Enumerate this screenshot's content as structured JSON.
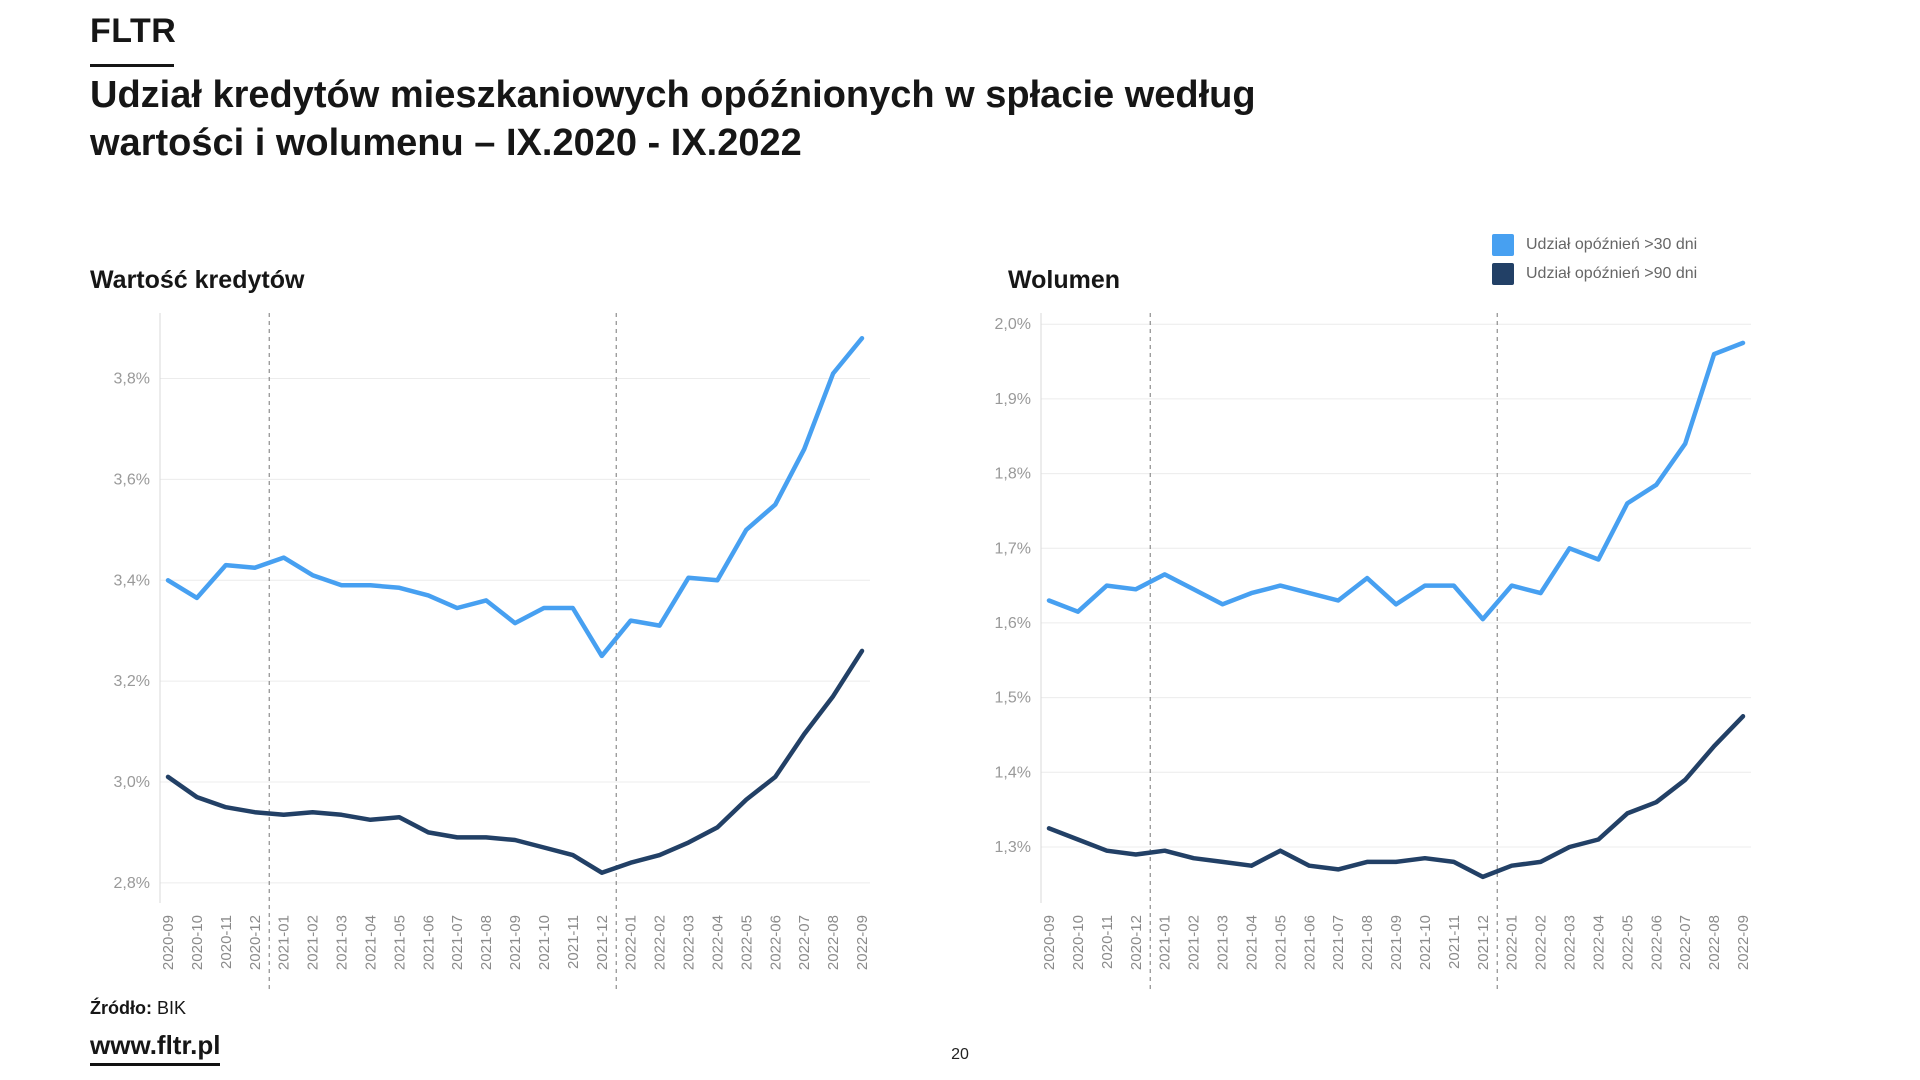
{
  "header": {
    "logo": "FLTR",
    "title_line1": "Udział kredytów mieszkaniowych opóźnionych w spłacie według",
    "title_line2": "wartości i wolumenu – IX.2020 - IX.2022"
  },
  "legend": {
    "items": [
      {
        "label": "Udział opóźnień >30 dni",
        "color": "#47A0F1"
      },
      {
        "label": "Udział opóźnień >90 dni",
        "color": "#224066"
      }
    ]
  },
  "footer": {
    "source_label": "Źródło:",
    "source_value": "BIK",
    "website": "www.fltr.pl",
    "page_number": "20"
  },
  "chart_data": [
    {
      "type": "line",
      "title": "Wartość kredytów",
      "unit": "%",
      "grid": "horizontal",
      "legend_position": "top-right-shared",
      "categories": [
        "2020-09",
        "2020-10",
        "2020-11",
        "2020-12",
        "2021-01",
        "2021-02",
        "2021-03",
        "2021-04",
        "2021-05",
        "2021-06",
        "2021-07",
        "2021-08",
        "2021-09",
        "2021-10",
        "2021-11",
        "2021-12",
        "2022-01",
        "2022-02",
        "2022-03",
        "2022-04",
        "2022-05",
        "2022-06",
        "2022-07",
        "2022-08",
        "2022-09"
      ],
      "series": [
        {
          "name": "Udział opóźnień >30 dni",
          "color": "#47A0F1",
          "values": [
            3.4,
            3.365,
            3.43,
            3.425,
            3.445,
            3.41,
            3.39,
            3.39,
            3.385,
            3.37,
            3.345,
            3.36,
            3.315,
            3.345,
            3.345,
            3.25,
            3.32,
            3.31,
            3.405,
            3.4,
            3.5,
            3.55,
            3.66,
            3.81,
            3.88
          ]
        },
        {
          "name": "Udział opóźnień >90 dni",
          "color": "#224066",
          "values": [
            3.01,
            2.97,
            2.95,
            2.94,
            2.935,
            2.94,
            2.935,
            2.925,
            2.93,
            2.9,
            2.89,
            2.89,
            2.885,
            2.87,
            2.855,
            2.82,
            2.84,
            2.855,
            2.88,
            2.91,
            2.965,
            3.01,
            3.095,
            3.17,
            3.26
          ]
        }
      ],
      "yticks": [
        3.8,
        3.6,
        3.4,
        3.2,
        3.0,
        2.8
      ],
      "ytick_labels": [
        "3,8%",
        "3,6%",
        "3,4%",
        "3,2%",
        "3,0%",
        "2,8%"
      ],
      "ylim": [
        2.76,
        3.93
      ],
      "dashed_year_boundaries_at_index": [
        3.5,
        15.5
      ]
    },
    {
      "type": "line",
      "title": "Wolumen",
      "unit": "%",
      "grid": "horizontal",
      "legend_position": "top-right-shared",
      "categories": [
        "2020-09",
        "2020-10",
        "2020-11",
        "2020-12",
        "2021-01",
        "2021-02",
        "2021-03",
        "2021-04",
        "2021-05",
        "2021-06",
        "2021-07",
        "2021-08",
        "2021-09",
        "2021-10",
        "2021-11",
        "2021-12",
        "2022-01",
        "2022-02",
        "2022-03",
        "2022-04",
        "2022-05",
        "2022-06",
        "2022-07",
        "2022-08",
        "2022-09"
      ],
      "series": [
        {
          "name": "Udział opóźnień >30 dni",
          "color": "#47A0F1",
          "values": [
            1.63,
            1.615,
            1.65,
            1.645,
            1.665,
            1.645,
            1.625,
            1.64,
            1.65,
            1.64,
            1.63,
            1.66,
            1.625,
            1.65,
            1.65,
            1.605,
            1.65,
            1.64,
            1.7,
            1.685,
            1.76,
            1.785,
            1.84,
            1.96,
            1.975
          ]
        },
        {
          "name": "Udział opóźnień >90 dni",
          "color": "#224066",
          "values": [
            1.325,
            1.31,
            1.295,
            1.29,
            1.295,
            1.285,
            1.28,
            1.275,
            1.295,
            1.275,
            1.27,
            1.28,
            1.28,
            1.285,
            1.28,
            1.26,
            1.275,
            1.28,
            1.3,
            1.31,
            1.345,
            1.36,
            1.39,
            1.435,
            1.475
          ]
        }
      ],
      "yticks": [
        2.0,
        1.9,
        1.8,
        1.7,
        1.6,
        1.5,
        1.4,
        1.3
      ],
      "ytick_labels": [
        "2,0%",
        "1,9%",
        "1,8%",
        "1,7%",
        "1,6%",
        "1,5%",
        "1,4%",
        "1,3%"
      ],
      "ylim": [
        1.225,
        2.015
      ],
      "dashed_year_boundaries_at_index": [
        3.5,
        15.5
      ]
    }
  ],
  "style": {
    "axis_line_color": "#d9d9d9",
    "grid_color": "#ececec",
    "dashed_line_color": "#777777",
    "ytick_color": "#999999",
    "xtick_color": "#8a8a8a"
  }
}
